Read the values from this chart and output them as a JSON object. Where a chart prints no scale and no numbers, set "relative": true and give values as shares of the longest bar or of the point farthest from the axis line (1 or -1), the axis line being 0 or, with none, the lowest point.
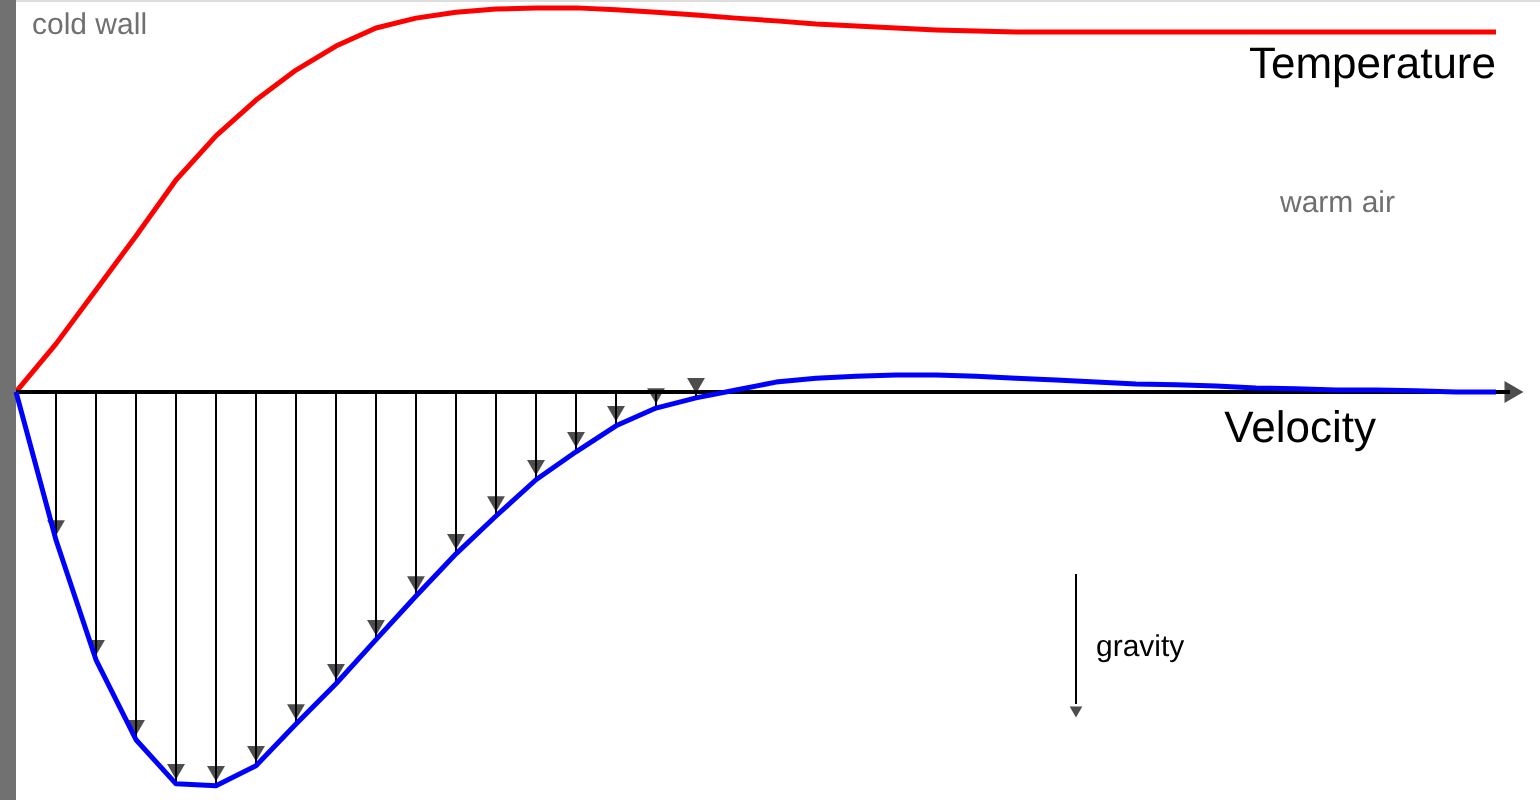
{
  "chart_data": {
    "type": "line",
    "relative": true,
    "categories": [
      null,
      null,
      null,
      null,
      null,
      null,
      null,
      null,
      null,
      null,
      null,
      null,
      null,
      null,
      null,
      null,
      null,
      null,
      null,
      null,
      null,
      null,
      null,
      null,
      null,
      null,
      null,
      null,
      null,
      null,
      null,
      null,
      null,
      null,
      null,
      null,
      null,
      null
    ],
    "series": [
      {
        "name": "Temperature",
        "color": "#ff0000",
        "values": [
          0,
          0.122,
          0.259,
          0.396,
          0.538,
          0.65,
          0.741,
          0.817,
          0.878,
          0.924,
          0.949,
          0.964,
          0.972,
          0.975,
          0.975,
          0.97,
          0.964,
          0.957,
          0.949,
          0.942,
          0.934,
          0.929,
          0.924,
          0.919,
          0.916,
          0.914,
          0.914,
          0.914,
          0.914,
          0.914,
          0.914,
          0.914,
          0.914,
          0.914,
          0.914,
          0.914,
          0.914,
          0.914
        ]
      },
      {
        "name": "Velocity",
        "color": "#0000ff",
        "values": [
          0,
          -0.376,
          -0.68,
          -0.883,
          -0.995,
          -1.0,
          -0.949,
          -0.843,
          -0.741,
          -0.629,
          -0.518,
          -0.411,
          -0.315,
          -0.223,
          -0.152,
          -0.086,
          -0.041,
          -0.015,
          0.005,
          0.025,
          0.035,
          0.04,
          0.043,
          0.043,
          0.04,
          0.035,
          0.03,
          0.025,
          0.02,
          0.018,
          0.015,
          0.01,
          0.008,
          0.005,
          0.005,
          0.003,
          0,
          0
        ]
      }
    ],
    "annotations": [
      "cold wall",
      "warm air",
      "gravity"
    ]
  }
}
